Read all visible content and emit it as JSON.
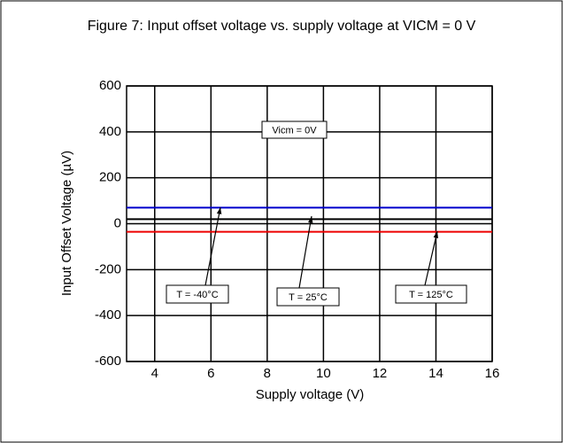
{
  "chart_data": {
    "type": "line",
    "title": "Figure 7: Input offset voltage vs. supply voltage at VICM = 0 V",
    "x_label": "Supply voltage (V)",
    "y_label": "Input Offset Voltage (µV)",
    "annotations": [
      "Vicm = 0V"
    ],
    "x": [
      3,
      16
    ],
    "series": [
      {
        "name": "T = -40°C",
        "color": "#0000cc",
        "values": [
          70,
          70
        ]
      },
      {
        "name": "T = 25°C",
        "color": "#000000",
        "values": [
          20,
          20
        ]
      },
      {
        "name": "T = 125°C",
        "color": "#ee0000",
        "values": [
          -35,
          -35
        ]
      }
    ],
    "xlim": [
      3,
      16
    ],
    "xticks": [
      4,
      6,
      8,
      10,
      12,
      14,
      16
    ],
    "ylim": [
      -600,
      600
    ],
    "yticks": [
      -600,
      -400,
      -200,
      0,
      200,
      400,
      600
    ],
    "grid": true
  }
}
